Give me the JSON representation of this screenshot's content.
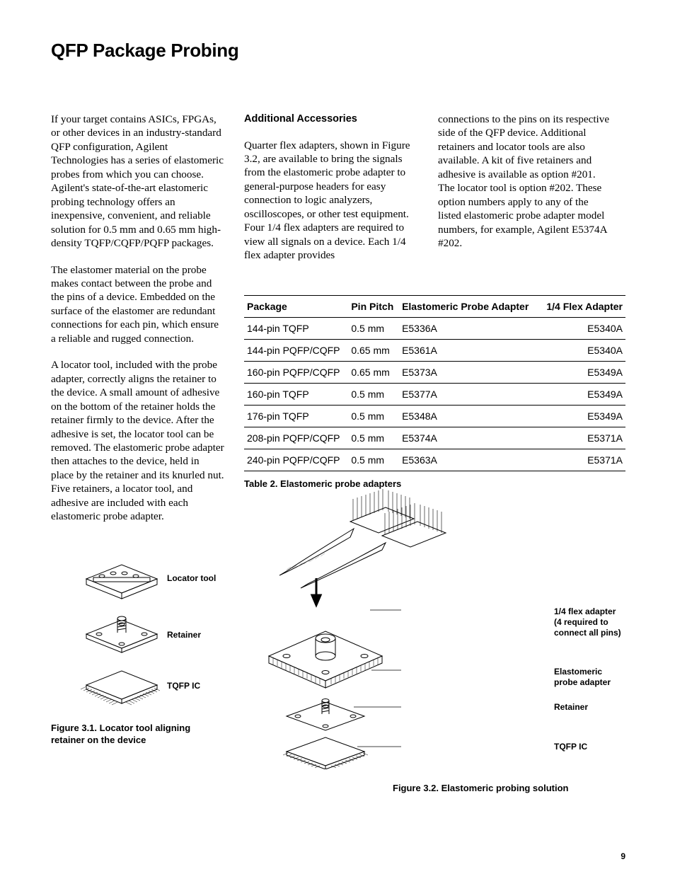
{
  "title": "QFP Package Probing",
  "col1": {
    "p1": "If your target contains ASICs, FPGAs, or other devices in an industry-standard QFP configuration, Agilent Technologies has a series of elastomeric probes from which you can choose. Agilent's state-of-the-art elastomeric probing technology offers an inexpensive, convenient, and reliable solution for 0.5 mm and 0.65 mm high-density TQFP/CQFP/PQFP packages.",
    "p2": "The elastomer material on the probe makes contact between the probe and the pins of a device. Embedded on the surface of the elastomer are redundant connections for each pin, which ensure a reliable and rugged connection.",
    "p3": "A locator tool, included with the probe adapter, correctly aligns the retainer to the device. A small amount of adhesive on the bottom of the retainer holds the retainer firmly to the device.  After the adhesive is set, the locator tool can be removed. The elastomeric probe adapter then attaches to the device, held in place by the retainer and its knurled nut. Five retainers, a locator tool, and adhesive are included with each elastomeric probe adapter."
  },
  "col2": {
    "heading": "Additional Accessories",
    "p1": "Quarter flex adapters, shown in Figure 3.2, are available to bring the signals from the elastomeric probe adapter to general-purpose headers for easy connection to logic analyzers, oscilloscopes, or other test equipment. Four 1/4 flex adapters are required to view all signals on a device. Each 1/4 flex adapter provides"
  },
  "col3": {
    "p1": "connections to the pins on its respective side of the QFP device. Additional retainers and locator tools are also available. A kit of five retainers and adhesive is available as option #201. The locator tool is option #202. These option numbers apply to any of the listed elastomeric probe adapter model numbers, for example, Agilent E5374A #202."
  },
  "table": {
    "headers": [
      "Package",
      "Pin Pitch",
      "Elastomeric Probe Adapter",
      "1/4 Flex Adapter"
    ],
    "rows": [
      [
        "144-pin TQFP",
        "0.5 mm",
        "E5336A",
        "E5340A"
      ],
      [
        "144-pin PQFP/CQFP",
        "0.65 mm",
        "E5361A",
        "E5340A"
      ],
      [
        "160-pin PQFP/CQFP",
        "0.65 mm",
        "E5373A",
        "E5349A"
      ],
      [
        "160-pin TQFP",
        "0.5 mm",
        "E5377A",
        "E5349A"
      ],
      [
        "176-pin TQFP",
        "0.5 mm",
        "E5348A",
        "E5349A"
      ],
      [
        "208-pin PQFP/CQFP",
        "0.5 mm",
        "E5374A",
        "E5371A"
      ],
      [
        "240-pin PQFP/CQFP",
        "0.5 mm",
        "E5363A",
        "E5371A"
      ]
    ],
    "caption": "Table 2. Elastomeric probe adapters"
  },
  "fig1": {
    "labels": {
      "a": "Locator tool",
      "b": "Retainer",
      "c": "TQFP IC"
    },
    "caption": "Figure 3.1. Locator tool aligning retainer on the device"
  },
  "fig2": {
    "labels": {
      "a": "1/4  flex adapter",
      "a2": "(4 required to connect all pins)",
      "b": "Elastomeric",
      "b2": "probe adapter",
      "c": "Retainer",
      "d": "TQFP IC"
    },
    "caption": "Figure 3.2. Elastomeric probing solution"
  },
  "pageNumber": "9",
  "colors": {
    "ink": "#000000",
    "bg": "#ffffff",
    "midgrey": "#888888"
  }
}
